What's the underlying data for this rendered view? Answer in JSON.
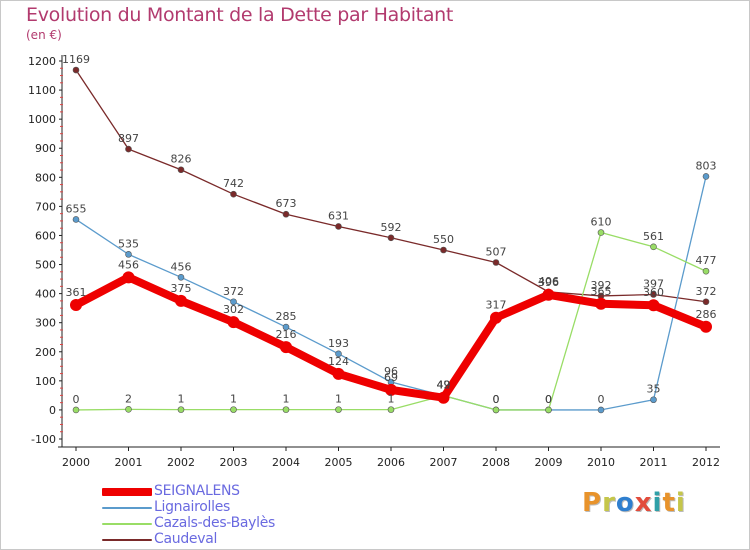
{
  "chart_data": {
    "type": "line",
    "title": "Evolution du Montant de la Dette par Habitant",
    "subtitle": "(en €)",
    "x": [
      "2000",
      "2001",
      "2002",
      "2003",
      "2004",
      "2005",
      "2006",
      "2007",
      "2008",
      "2009",
      "2010",
      "2011",
      "2012"
    ],
    "ylim": [
      -100,
      1200
    ],
    "yticks": [
      -100,
      0,
      100,
      200,
      300,
      400,
      500,
      600,
      700,
      800,
      900,
      1000,
      1100,
      1200
    ],
    "grid": false,
    "legend_position": "bottom-left",
    "series": [
      {
        "name": "Caudeval",
        "color": "#7a2a2a",
        "values": [
          1169,
          897,
          826,
          742,
          673,
          631,
          592,
          550,
          507,
          406,
          392,
          397,
          372
        ],
        "labels": [
          "1169",
          "897",
          "826",
          "742",
          "673",
          "631",
          "592",
          "550",
          "507",
          "406",
          "392",
          "397",
          "372"
        ]
      },
      {
        "name": "Lignairolles",
        "color": "#5b9bcc",
        "values": [
          655,
          535,
          456,
          372,
          285,
          193,
          96,
          49,
          0,
          0,
          0,
          35,
          803
        ],
        "labels": [
          "655",
          "535",
          "456",
          "372",
          "285",
          "193",
          "96",
          "49",
          "0",
          "0",
          "0",
          "35",
          "803"
        ]
      },
      {
        "name": "Cazals-des-Baylès",
        "color": "#99dd66",
        "values": [
          0,
          2,
          1,
          1,
          1,
          1,
          1,
          49,
          0,
          0,
          610,
          561,
          477
        ],
        "labels": [
          "0",
          "2",
          "1",
          "1",
          "1",
          "1",
          "1",
          "49",
          "0",
          "0",
          "610",
          "561",
          "477"
        ]
      },
      {
        "name": "SEIGNALENS",
        "color": "#ee0000",
        "values": [
          361,
          456,
          375,
          302,
          216,
          124,
          69,
          42,
          317,
          396,
          365,
          360,
          286
        ],
        "labels": [
          "361",
          "456",
          "375",
          "302",
          "216",
          "124",
          "69",
          "42",
          "317",
          "396",
          "365",
          "360",
          "286"
        ]
      }
    ],
    "legend_order": [
      "SEIGNALENS",
      "Lignairolles",
      "Cazals-des-Baylès",
      "Caudeval"
    ]
  },
  "brand": {
    "letters": [
      "P",
      "r",
      "o",
      "x",
      "i",
      "t",
      "i"
    ]
  }
}
